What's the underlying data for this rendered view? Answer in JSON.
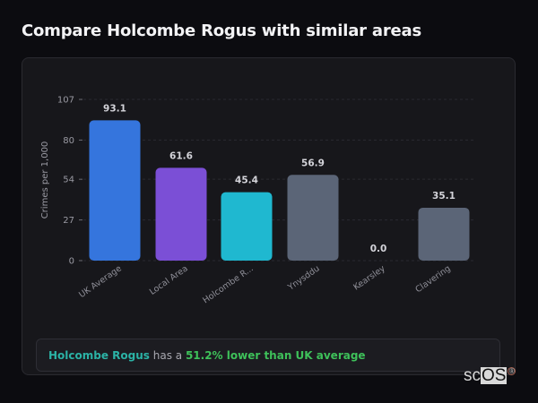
{
  "page": {
    "title": "Compare Holcombe Rogus with similar areas"
  },
  "chart_data": {
    "type": "bar",
    "title": "",
    "xlabel": "",
    "ylabel": "Crimes per 1,000",
    "ylim": [
      0,
      107
    ],
    "yticks": [
      0,
      27,
      54,
      80,
      107
    ],
    "grid": true,
    "legend": "none",
    "categories": [
      "UK Average",
      "Local Area",
      "Holcombe R...",
      "Ynysddu",
      "Kearsley",
      "Clavering"
    ],
    "values": [
      93.1,
      61.6,
      45.4,
      56.9,
      0.0,
      35.1
    ],
    "value_labels": [
      "93.1",
      "61.6",
      "45.4",
      "56.9",
      "0.0",
      "35.1"
    ],
    "colors": [
      "#3575dd",
      "#7b4fd6",
      "#1fb8d0",
      "#5b6577",
      "#5b6577",
      "#5b6577"
    ]
  },
  "summary": {
    "area_name": "Holcombe Rogus",
    "middle_text": " has a ",
    "stat_text": "51.2% lower than UK average"
  },
  "watermark": {
    "prefix": "sc",
    "boxed": "OS",
    "registered": "®"
  }
}
